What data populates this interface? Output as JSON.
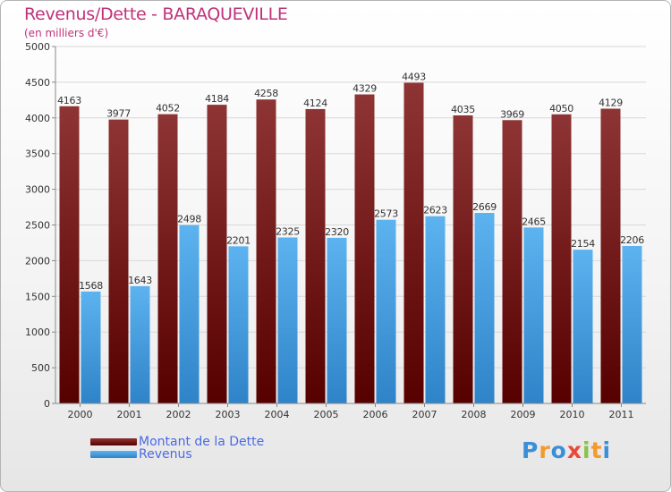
{
  "title": "Revenus/Dette - BARAQUEVILLE",
  "subtitle": "(en milliers d'€)",
  "logo": {
    "text": "Proxiti",
    "letters": [
      "P",
      "r",
      "o",
      "x",
      "i",
      "t",
      "i"
    ],
    "colors": [
      "#3b8fd9",
      "#f29a2e",
      "#3b8fd9",
      "#e84a3a",
      "#8bc34a",
      "#f29a2e",
      "#3b8fd9"
    ]
  },
  "colors": {
    "dette": "#7a1f1f",
    "revenus": "#3a9ae0",
    "grid": "#d8d8d8",
    "text": "#333333"
  },
  "chart_data": {
    "type": "bar",
    "categories": [
      "2000",
      "2001",
      "2002",
      "2003",
      "2004",
      "2005",
      "2006",
      "2007",
      "2008",
      "2009",
      "2010",
      "2011"
    ],
    "series": [
      {
        "name": "Montant de la Dette",
        "values": [
          4163,
          3977,
          4052,
          4184,
          4258,
          4124,
          4329,
          4493,
          4035,
          3969,
          4050,
          4129
        ]
      },
      {
        "name": "Revenus",
        "values": [
          1568,
          1643,
          2498,
          2201,
          2325,
          2320,
          2573,
          2623,
          2669,
          2465,
          2154,
          2206
        ]
      }
    ],
    "ylim": [
      0,
      5000
    ],
    "yticks": [
      0,
      500,
      1000,
      1500,
      2000,
      2500,
      3000,
      3500,
      4000,
      4500,
      5000
    ],
    "grid": true,
    "legend_position": "bottom-left"
  }
}
